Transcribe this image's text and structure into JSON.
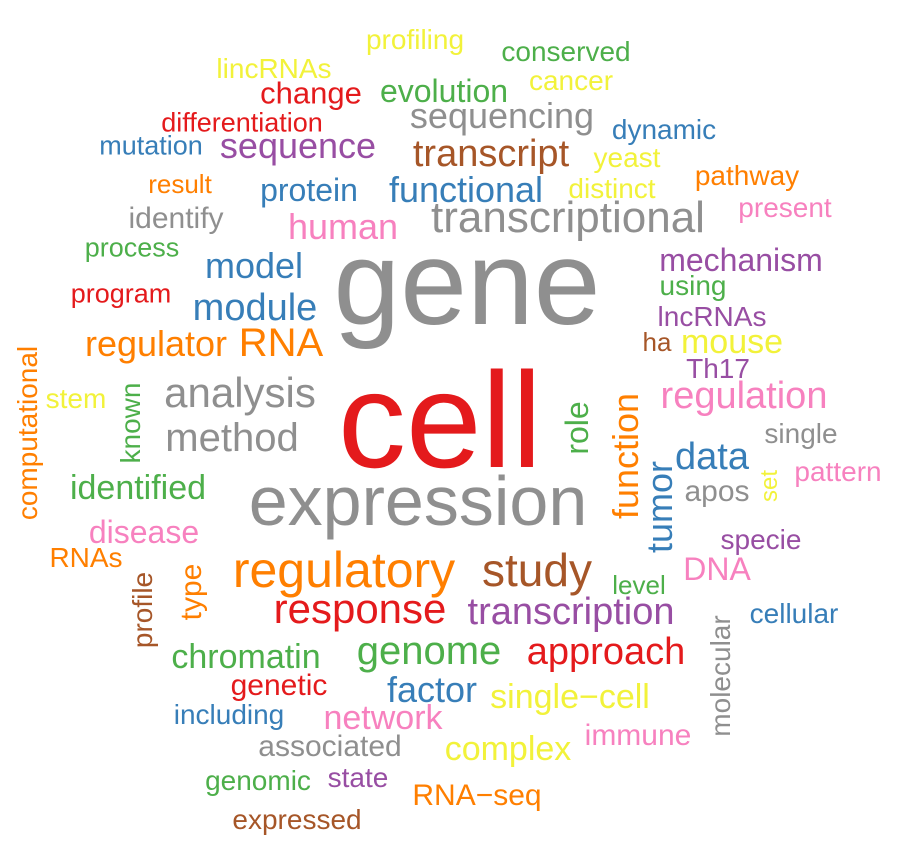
{
  "colors": {
    "gray": "#8f8f8f",
    "red": "#e41a1c",
    "orange": "#ff7f00",
    "brown": "#a65628",
    "blue": "#377eb8",
    "green": "#4daf4a",
    "purple": "#984ea3",
    "pink": "#f781bf",
    "yellow": "#f2f23a"
  },
  "words": [
    {
      "id": "profiling",
      "text": "profiling",
      "color": "yellow"
    },
    {
      "id": "conserved",
      "text": "conserved",
      "color": "green"
    },
    {
      "id": "lincrnas",
      "text": "lincRNAs",
      "color": "yellow"
    },
    {
      "id": "cancer",
      "text": "cancer",
      "color": "yellow"
    },
    {
      "id": "change",
      "text": "change",
      "color": "red"
    },
    {
      "id": "evolution",
      "text": "evolution",
      "color": "green"
    },
    {
      "id": "differentiation",
      "text": "differentiation",
      "color": "red"
    },
    {
      "id": "sequencing",
      "text": "sequencing",
      "color": "gray"
    },
    {
      "id": "dynamic",
      "text": "dynamic",
      "color": "blue"
    },
    {
      "id": "mutation",
      "text": "mutation",
      "color": "blue"
    },
    {
      "id": "sequence",
      "text": "sequence",
      "color": "purple"
    },
    {
      "id": "transcript",
      "text": "transcript",
      "color": "brown"
    },
    {
      "id": "yeast",
      "text": "yeast",
      "color": "yellow"
    },
    {
      "id": "result",
      "text": "result",
      "color": "orange"
    },
    {
      "id": "protein",
      "text": "protein",
      "color": "blue"
    },
    {
      "id": "functional",
      "text": "functional",
      "color": "blue"
    },
    {
      "id": "distinct",
      "text": "distinct",
      "color": "yellow"
    },
    {
      "id": "pathway",
      "text": "pathway",
      "color": "orange"
    },
    {
      "id": "identify",
      "text": "identify",
      "color": "gray"
    },
    {
      "id": "transcriptional",
      "text": "transcriptional",
      "color": "gray"
    },
    {
      "id": "present",
      "text": "present",
      "color": "pink"
    },
    {
      "id": "human",
      "text": "human",
      "color": "pink"
    },
    {
      "id": "process",
      "text": "process",
      "color": "green"
    },
    {
      "id": "gene",
      "text": "gene",
      "color": "gray"
    },
    {
      "id": "mechanism",
      "text": "mechanism",
      "color": "purple"
    },
    {
      "id": "model",
      "text": "model",
      "color": "blue"
    },
    {
      "id": "using",
      "text": "using",
      "color": "green"
    },
    {
      "id": "program",
      "text": "program",
      "color": "red"
    },
    {
      "id": "module",
      "text": "module",
      "color": "blue"
    },
    {
      "id": "lncrnas",
      "text": "lncRNAs",
      "color": "purple"
    },
    {
      "id": "regulator",
      "text": "regulator",
      "color": "orange"
    },
    {
      "id": "rna",
      "text": "RNA",
      "color": "orange"
    },
    {
      "id": "ha",
      "text": "ha",
      "color": "brown"
    },
    {
      "id": "mouse",
      "text": "mouse",
      "color": "yellow"
    },
    {
      "id": "computational",
      "text": "computational",
      "color": "orange"
    },
    {
      "id": "th17",
      "text": "Th17",
      "color": "purple"
    },
    {
      "id": "stem",
      "text": "stem",
      "color": "yellow"
    },
    {
      "id": "known",
      "text": "known",
      "color": "green"
    },
    {
      "id": "analysis",
      "text": "analysis",
      "color": "gray"
    },
    {
      "id": "cell",
      "text": "cell",
      "color": "red"
    },
    {
      "id": "function",
      "text": "function",
      "color": "orange"
    },
    {
      "id": "regulation",
      "text": "regulation",
      "color": "pink"
    },
    {
      "id": "role",
      "text": "role",
      "color": "green"
    },
    {
      "id": "method",
      "text": "method",
      "color": "gray"
    },
    {
      "id": "single",
      "text": "single",
      "color": "gray"
    },
    {
      "id": "data",
      "text": "data",
      "color": "blue"
    },
    {
      "id": "identified",
      "text": "identified",
      "color": "green"
    },
    {
      "id": "tumor",
      "text": "tumor",
      "color": "blue"
    },
    {
      "id": "pattern",
      "text": "pattern",
      "color": "pink"
    },
    {
      "id": "expression",
      "text": "expression",
      "color": "gray"
    },
    {
      "id": "apos",
      "text": "apos",
      "color": "gray"
    },
    {
      "id": "set",
      "text": "set",
      "color": "yellow"
    },
    {
      "id": "disease",
      "text": "disease",
      "color": "pink"
    },
    {
      "id": "specie",
      "text": "specie",
      "color": "purple"
    },
    {
      "id": "rnas",
      "text": "RNAs",
      "color": "orange"
    },
    {
      "id": "regulatory",
      "text": "regulatory",
      "color": "orange"
    },
    {
      "id": "study",
      "text": "study",
      "color": "brown"
    },
    {
      "id": "dna",
      "text": "DNA",
      "color": "pink"
    },
    {
      "id": "profile",
      "text": "profile",
      "color": "brown"
    },
    {
      "id": "type",
      "text": "type",
      "color": "orange"
    },
    {
      "id": "level",
      "text": "level",
      "color": "green"
    },
    {
      "id": "response",
      "text": "response",
      "color": "red"
    },
    {
      "id": "transcription",
      "text": "transcription",
      "color": "purple"
    },
    {
      "id": "cellular",
      "text": "cellular",
      "color": "blue"
    },
    {
      "id": "molecular",
      "text": "molecular",
      "color": "gray"
    },
    {
      "id": "chromatin",
      "text": "chromatin",
      "color": "green"
    },
    {
      "id": "genome",
      "text": "genome",
      "color": "green"
    },
    {
      "id": "approach",
      "text": "approach",
      "color": "red"
    },
    {
      "id": "genetic",
      "text": "genetic",
      "color": "red"
    },
    {
      "id": "factor",
      "text": "factor",
      "color": "blue"
    },
    {
      "id": "single-cell",
      "text": "single−cell",
      "color": "yellow"
    },
    {
      "id": "including",
      "text": "including",
      "color": "blue"
    },
    {
      "id": "network",
      "text": "network",
      "color": "pink"
    },
    {
      "id": "immune",
      "text": "immune",
      "color": "pink"
    },
    {
      "id": "associated",
      "text": "associated",
      "color": "gray"
    },
    {
      "id": "complex",
      "text": "complex",
      "color": "yellow"
    },
    {
      "id": "genomic",
      "text": "genomic",
      "color": "green"
    },
    {
      "id": "state",
      "text": "state",
      "color": "purple"
    },
    {
      "id": "rna-seq",
      "text": "RNA−seq",
      "color": "orange"
    },
    {
      "id": "expressed",
      "text": "expressed",
      "color": "brown"
    }
  ]
}
